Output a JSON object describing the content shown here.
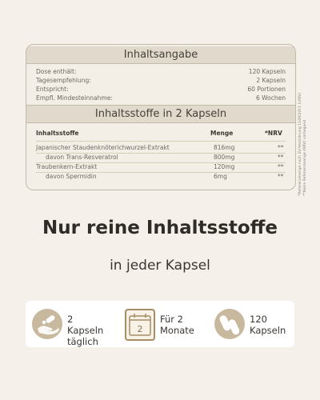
{
  "panel": {
    "section1_title": "Inhaltsangabe",
    "info_rows": [
      {
        "label": "Dose enthält:",
        "value": "120 Kapseln"
      },
      {
        "label": "Tagesempfehlung:",
        "value": "2 Kapseln"
      },
      {
        "label": "Entspricht:",
        "value": "60 Portionen"
      },
      {
        "label": "Empfl. Mindesteinnahme:",
        "value": "6 Wochen"
      }
    ],
    "section2_title": "Inhaltsstoffe in 2 Kapseln",
    "table_header": {
      "col1": "Inhaltsstoffe",
      "col2": "Menge",
      "col3": "*NRV"
    },
    "table_rows": [
      {
        "name": "Japanischer Staudenknöterichwurzel-Extrakt",
        "amount": "816mg",
        "nrv": "**"
      },
      {
        "name": "davon Trans-Resveratrol",
        "amount": "800mg",
        "nrv": "**"
      },
      {
        "name": "Traubenkern-Extrakt",
        "amount": "120mg",
        "nrv": "**"
      },
      {
        "name": "davon Spermidin",
        "amount": "6mg",
        "nrv": "**"
      }
    ]
  },
  "footnotes": {
    "line1": "*Referenzmenge nach EU-Verordnung 1169/2011 (LMIV)",
    "line2": "**Keine Referenzmenge (NRV) vorliegend"
  },
  "headline": "Nur reine Inhaltsstoffe",
  "subline": "in jeder Kapsel",
  "features": [
    {
      "line1": "2 Kapseln",
      "line2": "täglich",
      "icon": "hand-pill-icon"
    },
    {
      "line1": "Für 2",
      "line2": "Monate",
      "icon": "calendar-icon",
      "icon_text": "2"
    },
    {
      "line1": "120",
      "line2": "Kapseln",
      "icon": "capsules-icon"
    }
  ],
  "colors": {
    "background": "#f5f1ea",
    "accent": "#c8b99e",
    "band": "#e1d9cb",
    "text": "#2f2b27"
  }
}
